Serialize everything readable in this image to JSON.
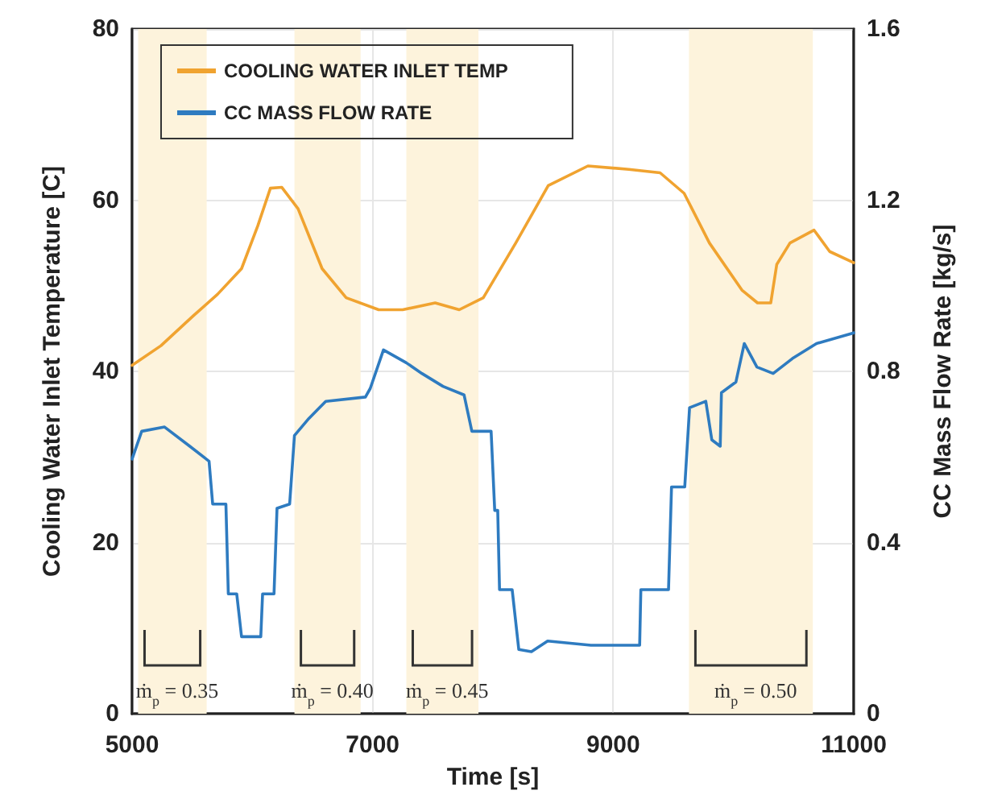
{
  "chart_data": {
    "type": "line",
    "xlabel": "Time [s]",
    "ylabel": "Cooling Water Inlet Temperature [C]",
    "y2label": "CC Mass Flow Rate [kg/s]",
    "xlim": [
      5000,
      11000
    ],
    "xticks": [
      5000,
      7000,
      9000,
      11000
    ],
    "ylim": [
      0,
      80
    ],
    "yticks": [
      0,
      20,
      40,
      60,
      80
    ],
    "y2lim": [
      0,
      1.6
    ],
    "y2ticks": [
      0,
      0.4,
      0.8,
      1.2,
      1.6
    ],
    "grid": true,
    "legend": "top left",
    "marker": "none",
    "line_style": "solid",
    "series": [
      {
        "name": "COOLING WATER INLET TEMP",
        "color": "#f0a330",
        "x": [
          5000,
          5240,
          5510,
          5710,
          5910,
          6045,
          6150,
          6245,
          6380,
          6580,
          6780,
          7050,
          7250,
          7520,
          7720,
          7920,
          8190,
          8460,
          8790,
          9130,
          9390,
          9590,
          9800,
          10070,
          10200,
          10310,
          10360,
          10470,
          10670,
          10800,
          11000
        ],
        "values": [
          40.7,
          43,
          46.5,
          49,
          52,
          57,
          61.4,
          61.5,
          59,
          52,
          48.6,
          47.2,
          47.2,
          48,
          47.2,
          48.6,
          55,
          61.7,
          64,
          63.6,
          63.2,
          60.8,
          55,
          49.5,
          48,
          48,
          52.5,
          55,
          56.5,
          54,
          52.7
        ]
      },
      {
        "name": "CC MASS FLOW RATE",
        "color": "#2e7bc0",
        "axis": "y2",
        "x": [
          5000,
          5080,
          5270,
          5480,
          5640,
          5670,
          5780,
          5800,
          5870,
          5910,
          6070,
          6085,
          6180,
          6205,
          6310,
          6350,
          6470,
          6610,
          6940,
          6980,
          7090,
          7280,
          7410,
          7585,
          7760,
          7825,
          7985,
          8015,
          8040,
          8055,
          8160,
          8215,
          8320,
          8455,
          8815,
          9220,
          9230,
          9460,
          9485,
          9595,
          9635,
          9770,
          9820,
          9890,
          9900,
          10020,
          10090,
          10195,
          10330,
          10490,
          10690,
          11000
        ],
        "values": [
          0.595,
          0.66,
          0.67,
          0.625,
          0.59,
          0.49,
          0.49,
          0.28,
          0.28,
          0.18,
          0.18,
          0.28,
          0.28,
          0.48,
          0.49,
          0.65,
          0.69,
          0.73,
          0.74,
          0.76,
          0.85,
          0.82,
          0.795,
          0.765,
          0.745,
          0.66,
          0.66,
          0.475,
          0.475,
          0.29,
          0.29,
          0.15,
          0.145,
          0.17,
          0.16,
          0.16,
          0.29,
          0.29,
          0.53,
          0.53,
          0.715,
          0.73,
          0.64,
          0.625,
          0.75,
          0.775,
          0.865,
          0.81,
          0.795,
          0.83,
          0.865,
          0.89
        ]
      }
    ],
    "bands": [
      {
        "axis": "x",
        "from": 5050,
        "to": 5620,
        "color": "#fdf3dc"
      },
      {
        "axis": "x",
        "from": 6350,
        "to": 6900,
        "color": "#fdf3dc"
      },
      {
        "axis": "x",
        "from": 7280,
        "to": 7880,
        "color": "#fdf3dc"
      },
      {
        "axis": "x",
        "from": 9630,
        "to": 10660,
        "color": "#fdf3dc"
      }
    ],
    "annotations": [
      "ṁ$_{p}$ = 0.35",
      "ṁ$_{p}$ = 0.40",
      "ṁ$_{p}$ = 0.45",
      "ṁ$_{p}$ = 0.50"
    ]
  }
}
